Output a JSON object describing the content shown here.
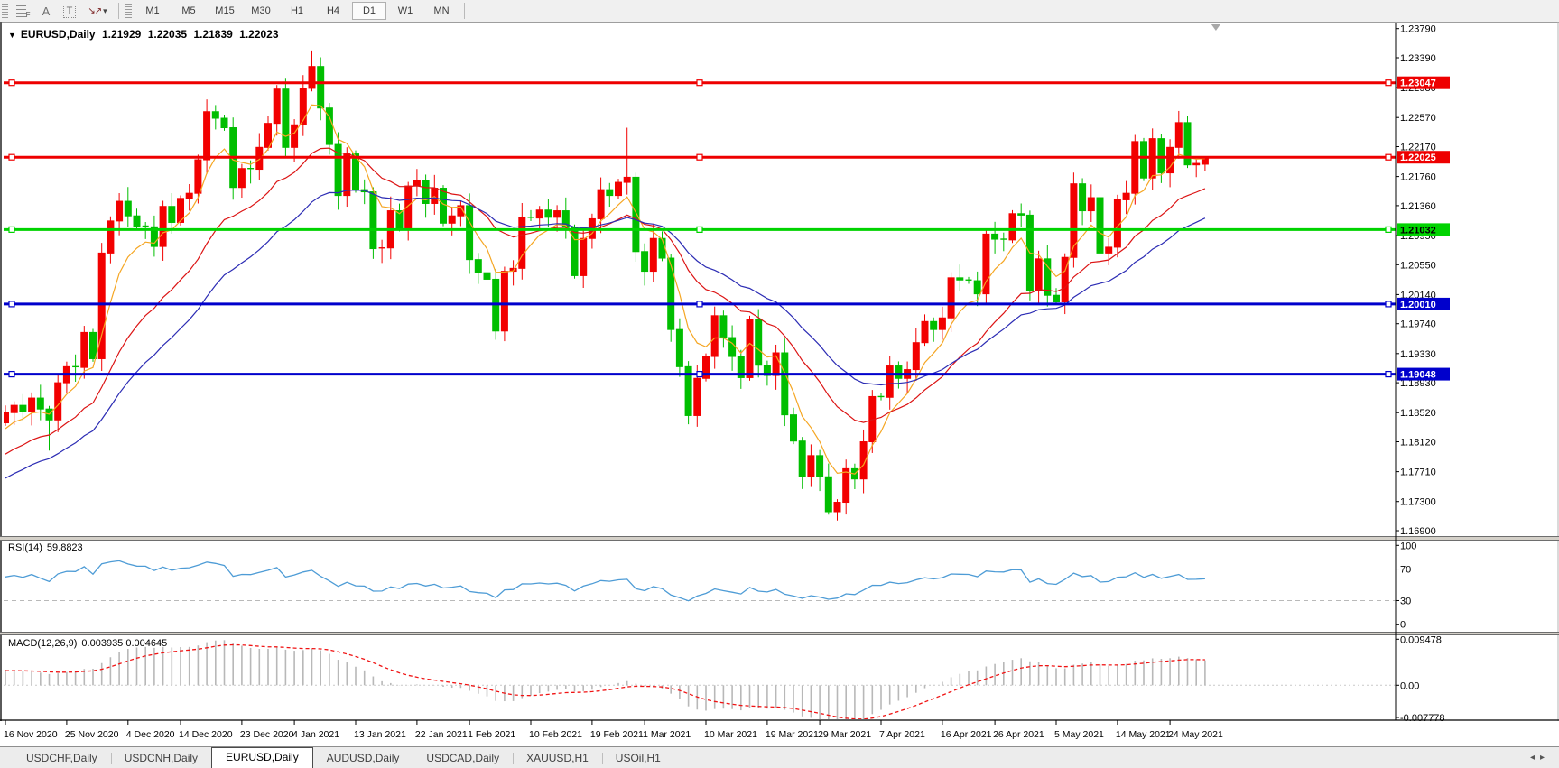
{
  "toolbar": {
    "icons": [
      {
        "name": "objects-grid-icon",
        "glyph": "F"
      },
      {
        "name": "font-icon",
        "glyph": "A"
      },
      {
        "name": "text-label-icon",
        "glyph": "T"
      },
      {
        "name": "arrow-objects-icon",
        "glyph": "↘↗"
      },
      {
        "name": "dropdown-caret-icon",
        "glyph": "▾"
      }
    ],
    "timeframes": [
      {
        "label": "M1",
        "active": false
      },
      {
        "label": "M5",
        "active": false
      },
      {
        "label": "M15",
        "active": false
      },
      {
        "label": "M30",
        "active": false
      },
      {
        "label": "H1",
        "active": false
      },
      {
        "label": "H4",
        "active": false
      },
      {
        "label": "D1",
        "active": true
      },
      {
        "label": "W1",
        "active": false
      },
      {
        "label": "MN",
        "active": false
      }
    ]
  },
  "chart": {
    "title": {
      "symbol": "EURUSD,Daily",
      "open": "1.21929",
      "high": "1.22035",
      "low": "1.21839",
      "close": "1.22023"
    },
    "price_axis_ticks": [
      "1.23790",
      "1.23390",
      "1.22980",
      "1.22570",
      "1.22170",
      "1.21760",
      "1.21360",
      "1.20950",
      "1.20550",
      "1.20140",
      "1.19740",
      "1.19330",
      "1.18930",
      "1.18520",
      "1.18120",
      "1.17710",
      "1.17300",
      "1.16900"
    ],
    "hlines": [
      {
        "price": 1.23047,
        "label": "1.23047",
        "color": "#EE0000",
        "text_color": "#FFFFFF"
      },
      {
        "price": 1.22025,
        "label": "1.22025",
        "color": "#EE0000",
        "text_color": "#FFFFFF"
      },
      {
        "price": 1.21032,
        "label": "1.21032",
        "color": "#00D300",
        "text_color": "#000000"
      },
      {
        "price": 1.2001,
        "label": "1.20010",
        "color": "#0000CC",
        "text_color": "#FFFFFF"
      },
      {
        "price": 1.19048,
        "label": "1.19048",
        "color": "#0000CC",
        "text_color": "#FFFFFF"
      }
    ],
    "date_labels": [
      {
        "label": "16 Nov 2020",
        "bar": 0
      },
      {
        "label": "25 Nov 2020",
        "bar": 7
      },
      {
        "label": "4 Dec 2020",
        "bar": 14
      },
      {
        "label": "14 Dec 2020",
        "bar": 20
      },
      {
        "label": "23 Dec 2020",
        "bar": 27
      },
      {
        "label": "4 Jan 2021",
        "bar": 33
      },
      {
        "label": "13 Jan 2021",
        "bar": 40
      },
      {
        "label": "22 Jan 2021",
        "bar": 47
      },
      {
        "label": "1 Feb 2021",
        "bar": 53
      },
      {
        "label": "10 Feb 2021",
        "bar": 60
      },
      {
        "label": "19 Feb 2021",
        "bar": 67
      },
      {
        "label": "1 Mar 2021",
        "bar": 73
      },
      {
        "label": "10 Mar 2021",
        "bar": 80
      },
      {
        "label": "19 Mar 2021",
        "bar": 87
      },
      {
        "label": "29 Mar 2021",
        "bar": 93
      },
      {
        "label": "7 Apr 2021",
        "bar": 100
      },
      {
        "label": "16 Apr 2021",
        "bar": 107
      },
      {
        "label": "26 Apr 2021",
        "bar": 113
      },
      {
        "label": "5 May 2021",
        "bar": 120
      },
      {
        "label": "14 May 2021",
        "bar": 127
      },
      {
        "label": "24 May 2021",
        "bar": 133
      }
    ]
  },
  "chart_data": {
    "type": "candlestick",
    "symbol": "EURUSD",
    "timeframe": "Daily",
    "bull_color": "#F20000",
    "bear_color": "#00BE00",
    "first_open": 1.1838,
    "closes": [
      1.1852,
      1.1862,
      1.1854,
      1.1872,
      1.1857,
      1.1842,
      1.1893,
      1.1915,
      1.1914,
      1.1962,
      1.1926,
      1.2071,
      1.2115,
      1.2142,
      1.2122,
      1.2108,
      1.2107,
      1.208,
      1.2135,
      1.2113,
      1.2146,
      1.2153,
      1.2199,
      1.2265,
      1.2256,
      1.2243,
      1.2161,
      1.2187,
      1.2186,
      1.2216,
      1.2249,
      1.2296,
      1.2216,
      1.2247,
      1.2297,
      1.2327,
      1.227,
      1.222,
      1.215,
      1.2207,
      1.2158,
      1.2155,
      1.2077,
      1.2078,
      1.2129,
      1.2105,
      1.2163,
      1.2171,
      1.2139,
      1.216,
      1.2112,
      1.2122,
      1.2136,
      1.2062,
      1.2044,
      1.2035,
      1.1964,
      1.2046,
      1.205,
      1.212,
      1.2119,
      1.213,
      1.212,
      1.2129,
      1.2106,
      1.204,
      1.2091,
      1.2118,
      1.2158,
      1.215,
      1.2168,
      1.2175,
      1.2073,
      1.2046,
      1.2091,
      1.2064,
      1.1966,
      1.1915,
      1.1848,
      1.1899,
      1.1929,
      1.1985,
      1.1955,
      1.1929,
      1.19,
      1.198,
      1.1917,
      1.1903,
      1.1934,
      1.1849,
      1.1813,
      1.1764,
      1.1793,
      1.1764,
      1.1716,
      1.1729,
      1.1775,
      1.1761,
      1.1812,
      1.1874,
      1.1873,
      1.1916,
      1.1899,
      1.1911,
      1.1948,
      1.1977,
      1.1966,
      1.1982,
      1.2037,
      1.2034,
      1.2033,
      1.2015,
      1.2097,
      1.209,
      1.2089,
      1.2125,
      1.2123,
      1.202,
      1.2063,
      1.2013,
      1.2004,
      1.2065,
      1.2166,
      1.2129,
      1.2147,
      1.2071,
      1.2079,
      1.2144,
      1.2153,
      1.2224,
      1.2174,
      1.2228,
      1.2181,
      1.2216,
      1.225,
      1.2192,
      1.2194,
      1.22023
    ],
    "opens_rule": "previous_close",
    "wick_cycle_tenth_pips": [
      14,
      8,
      22,
      11,
      26,
      6,
      18,
      10,
      24,
      13,
      7,
      20,
      9,
      16,
      28
    ],
    "overrides": {
      "5": {
        "l": 1.18
      },
      "35": {
        "h": 1.2349
      },
      "56": {
        "l": 1.1952
      },
      "71": {
        "h": 1.2243
      },
      "78": {
        "l": 1.1836
      },
      "94": {
        "l": 1.1712
      },
      "95": {
        "l": 1.1704
      },
      "134": {
        "h": 1.2266
      },
      "137": {
        "o": 1.21929,
        "h": 1.22035,
        "l": 1.21839,
        "c": 1.22023
      }
    },
    "moving_averages": [
      {
        "name": "ma-fast",
        "period": 6,
        "init": 1.183,
        "color": "#F5A623"
      },
      {
        "name": "ma-mid",
        "period": 18,
        "init": 1.1795,
        "color": "#DC1414"
      },
      {
        "name": "ma-slow",
        "period": 30,
        "init": 1.1762,
        "color": "#2C2CB4"
      }
    ]
  },
  "rsi": {
    "label": "RSI(14)",
    "value": "59.8823",
    "period": 14,
    "seed_gain": 0.0009,
    "seed_loss": 0.0006,
    "line_color": "#4E9CD6",
    "axis": [
      {
        "label": "100",
        "v": 100
      },
      {
        "label": "70",
        "v": 70
      },
      {
        "label": "30",
        "v": 30
      },
      {
        "label": "0",
        "v": 0
      }
    ],
    "dashed_levels": [
      70,
      30
    ]
  },
  "macd": {
    "label": "MACD(12,26,9)",
    "values": "0.003935 0.004645",
    "fast": 12,
    "slow": 26,
    "signal": 9,
    "ema_fast_init": 1.185,
    "ema_slow_init": 1.1818,
    "signal_init": 0.003,
    "histogram_color": "#B8B8B8",
    "signal_color": "#F01414",
    "axis": [
      {
        "label": "0.009478",
        "v": 0.009478
      },
      {
        "label": "0.00",
        "v": 0
      },
      {
        "label": "-0.007778",
        "v": -0.007778
      }
    ]
  },
  "tabs": {
    "items": [
      {
        "label": "USDCHF,Daily",
        "active": false
      },
      {
        "label": "USDCNH,Daily",
        "active": false
      },
      {
        "label": "EURUSD,Daily",
        "active": true
      },
      {
        "label": "AUDUSD,Daily",
        "active": false
      },
      {
        "label": "USDCAD,Daily",
        "active": false
      },
      {
        "label": "XAUUSD,H1",
        "active": false
      },
      {
        "label": "USOil,H1",
        "active": false
      }
    ],
    "scroll_left": "◂",
    "scroll_right": "▸"
  }
}
